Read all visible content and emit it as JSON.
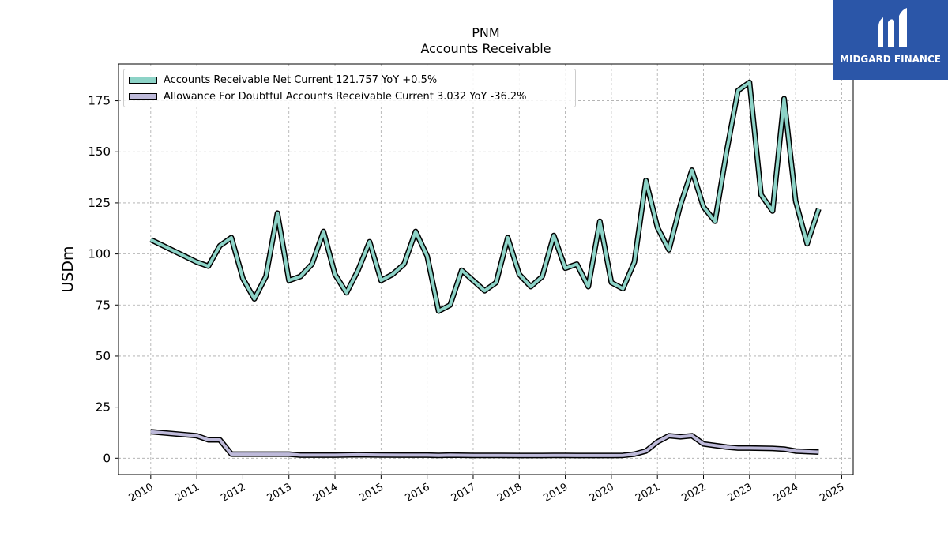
{
  "title": "PNM",
  "subtitle": "Accounts Receivable",
  "logo": {
    "text": "MIDGARD FINANCE",
    "background": "#2b56a8"
  },
  "chart_data": {
    "type": "line",
    "ylabel": "USDm",
    "xlabel": "",
    "ylim": [
      -8,
      193
    ],
    "xlim": [
      2009.3,
      2025.25
    ],
    "yticks": [
      0,
      25,
      50,
      75,
      100,
      125,
      150,
      175
    ],
    "xticks": [
      "2010",
      "2011",
      "2012",
      "2013",
      "2014",
      "2015",
      "2016",
      "2017",
      "2018",
      "2019",
      "2020",
      "2021",
      "2022",
      "2023",
      "2024",
      "2025"
    ],
    "grid": true,
    "legend_position": "top-left",
    "series": [
      {
        "name": "Accounts Receivable Net Current",
        "legend_label": "Accounts Receivable Net Current  121.757 YoY +0.5%",
        "color": "#8dd3c7",
        "x": [
          2010.0,
          2011.0,
          2011.25,
          2011.5,
          2011.75,
          2012.0,
          2012.25,
          2012.5,
          2012.75,
          2013.0,
          2013.25,
          2013.5,
          2013.75,
          2014.0,
          2014.25,
          2014.5,
          2014.75,
          2015.0,
          2015.25,
          2015.5,
          2015.75,
          2016.0,
          2016.25,
          2016.5,
          2016.75,
          2017.0,
          2017.25,
          2017.5,
          2017.75,
          2018.0,
          2018.25,
          2018.5,
          2018.75,
          2019.0,
          2019.25,
          2019.5,
          2019.75,
          2020.0,
          2020.25,
          2020.5,
          2020.75,
          2021.0,
          2021.25,
          2021.5,
          2021.75,
          2022.0,
          2022.25,
          2022.5,
          2022.75,
          2023.0,
          2023.25,
          2023.5,
          2023.75,
          2024.0,
          2024.25,
          2024.5
        ],
        "y": [
          107,
          96,
          94,
          104,
          108,
          88,
          78,
          89,
          120,
          87,
          89,
          95,
          111,
          90,
          81,
          92,
          106,
          87,
          90,
          95,
          111,
          99,
          72,
          75,
          92,
          87,
          82,
          86,
          108,
          90,
          84,
          89,
          109,
          93,
          95,
          84,
          116,
          86,
          83,
          96,
          136,
          113,
          102,
          124,
          141,
          123,
          116,
          150,
          180,
          184,
          129,
          121,
          176,
          126,
          105,
          122
        ]
      },
      {
        "name": "Allowance For Doubtful Accounts Receivable Current",
        "legend_label": "Allowance For Doubtful Accounts Receivable Current  3.032 YoY -36.2%",
        "color": "#bebada",
        "x": [
          2010.0,
          2011.0,
          2011.25,
          2011.5,
          2011.75,
          2012.0,
          2012.5,
          2012.75,
          2013.0,
          2013.25,
          2013.5,
          2014.0,
          2014.5,
          2015.0,
          2015.5,
          2016.0,
          2016.25,
          2016.5,
          2017.0,
          2017.5,
          2018.0,
          2018.5,
          2018.75,
          2019.0,
          2019.25,
          2019.5,
          2020.0,
          2020.25,
          2020.5,
          2020.75,
          2021.0,
          2021.25,
          2021.5,
          2021.75,
          2022.0,
          2022.5,
          2022.75,
          2023.0,
          2023.5,
          2023.75,
          2024.0,
          2024.5
        ],
        "y": [
          13,
          11,
          9,
          9,
          2,
          2,
          2,
          2,
          2,
          1.5,
          1.5,
          1.5,
          1.7,
          1.6,
          1.5,
          1.5,
          1.4,
          1.5,
          1.4,
          1.4,
          1.3,
          1.3,
          1.4,
          1.4,
          1.3,
          1.3,
          1.3,
          1.4,
          2,
          3.5,
          8,
          11,
          10.5,
          11,
          7,
          5.5,
          5,
          5,
          4.8,
          4.5,
          3.5,
          3
        ]
      }
    ]
  }
}
